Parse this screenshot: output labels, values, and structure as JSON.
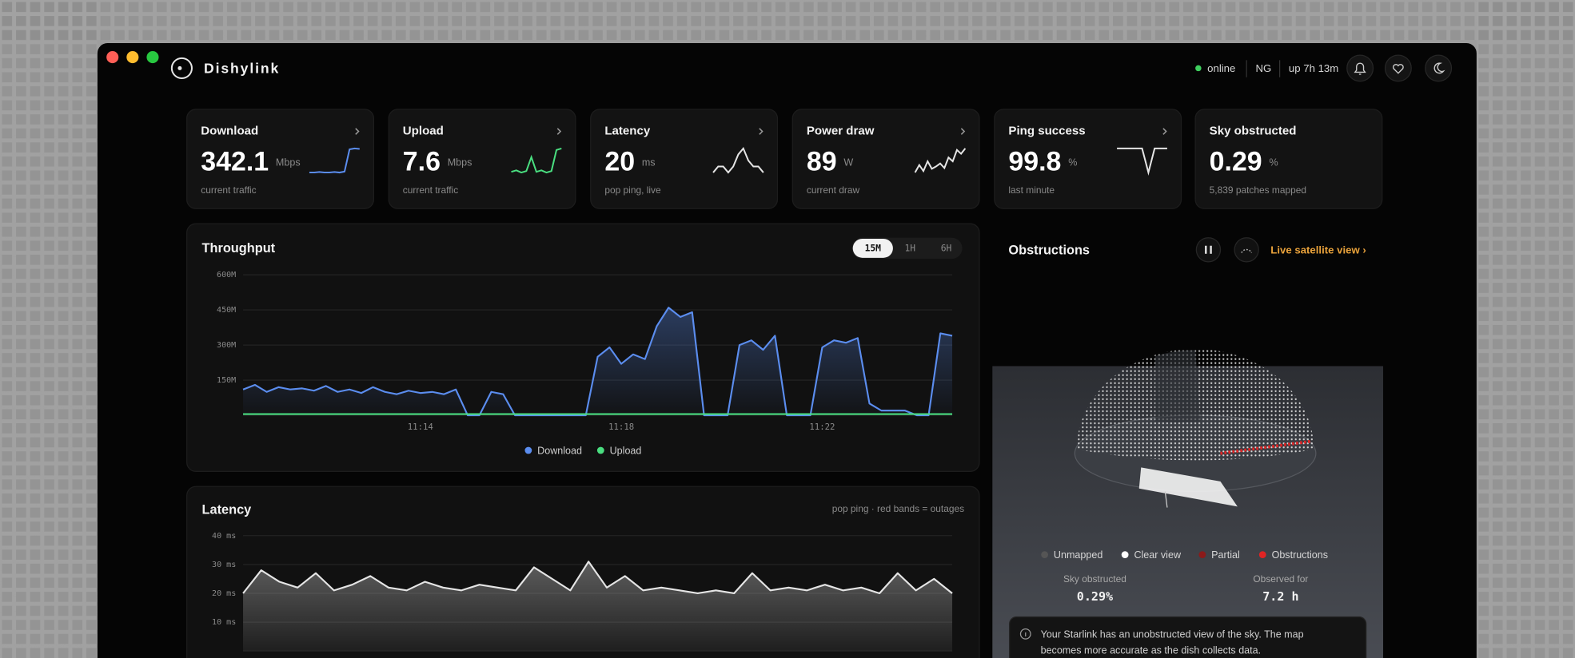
{
  "window": {
    "app_name": "Dishylink",
    "status": "online",
    "region": "NG",
    "uptime": "up 7h 13m"
  },
  "stat_cards": [
    {
      "title": "Download",
      "value": 342.1,
      "unit": "Mbps",
      "caption": "current traffic",
      "color": "#5b8def",
      "sparkline": [
        20,
        20,
        21,
        20,
        20,
        21,
        20,
        22,
        70,
        72,
        71
      ]
    },
    {
      "title": "Upload",
      "value": 7.6,
      "unit": "Mbps",
      "caption": "current traffic",
      "color": "#4ade80",
      "sparkline": [
        10,
        12,
        9,
        11,
        30,
        10,
        12,
        9,
        11,
        40,
        42
      ]
    },
    {
      "title": "Latency",
      "value": 20,
      "unit": "ms",
      "caption": "pop ping, live",
      "color": "#e5e5e5",
      "sparkline": [
        30,
        31,
        31,
        30,
        31,
        33,
        34,
        32,
        31,
        31,
        30
      ]
    },
    {
      "title": "Power draw",
      "value": 89,
      "unit": "W",
      "caption": "current draw",
      "color": "#e5e5e5",
      "sparkline": [
        20,
        30,
        22,
        35,
        25,
        28,
        32,
        26,
        40,
        35,
        50,
        45,
        52
      ]
    },
    {
      "title": "Ping success",
      "value": 99.8,
      "unit": "%",
      "caption": "last minute",
      "color": "#e5e5e5",
      "sparkline": [
        90,
        90,
        90,
        90,
        90,
        89.6,
        90,
        90,
        90
      ]
    },
    {
      "title": "Sky obstructed",
      "value": 0.29,
      "unit": "%",
      "caption": "5,839 patches mapped"
    }
  ],
  "throughput": {
    "title": "Throughput",
    "ranges": [
      "15M",
      "1H",
      "6H"
    ],
    "chart": {
      "type": "area",
      "categories": [
        null,
        null,
        null,
        null,
        null,
        null,
        null,
        null,
        null,
        null,
        null,
        null,
        null,
        null,
        null,
        "11:14",
        null,
        null,
        null,
        null,
        null,
        null,
        null,
        null,
        null,
        null,
        null,
        null,
        null,
        null,
        null,
        null,
        "11:18",
        null,
        null,
        null,
        null,
        null,
        null,
        null,
        null,
        null,
        null,
        null,
        null,
        null,
        null,
        null,
        null,
        "11:22",
        null,
        null,
        null,
        null,
        null,
        null,
        null,
        null,
        null,
        null,
        null
      ],
      "series": [
        {
          "name": "Download",
          "color": "#5b8def",
          "values": [
            110,
            130,
            100,
            120,
            110,
            115,
            105,
            125,
            100,
            110,
            95,
            120,
            100,
            90,
            105,
            95,
            100,
            90,
            110,
            0,
            0,
            100,
            90,
            0,
            0,
            0,
            0,
            0,
            0,
            0,
            250,
            290,
            220,
            260,
            240,
            380,
            460,
            420,
            440,
            0,
            0,
            0,
            300,
            320,
            280,
            340,
            0,
            0,
            0,
            290,
            320,
            310,
            330,
            50,
            20,
            20,
            20,
            0,
            0,
            350,
            340
          ]
        },
        {
          "name": "Upload",
          "color": "#4ade80",
          "values": [
            5,
            5,
            5,
            5,
            5,
            5,
            5,
            5,
            5,
            5,
            5,
            5,
            5,
            5,
            5,
            5,
            5,
            5,
            5,
            5,
            5,
            5,
            5,
            5,
            5,
            5,
            5,
            5,
            5,
            5,
            5,
            5,
            5,
            5,
            5,
            5,
            5,
            5,
            5,
            5,
            5,
            5,
            5,
            5,
            5,
            5,
            5,
            5,
            5,
            5,
            5,
            5,
            5,
            5,
            5,
            5,
            5,
            5,
            5,
            5,
            5
          ]
        }
      ],
      "ylim": [
        0,
        600
      ],
      "yticks": [
        {
          "value": 150,
          "label": "150M"
        },
        {
          "value": 300,
          "label": "300M"
        },
        {
          "value": 450,
          "label": "450M"
        },
        {
          "value": 600,
          "label": "600M"
        }
      ],
      "grid": true
    }
  },
  "latency": {
    "title": "Latency",
    "subtitle": "pop ping · red bands = outages",
    "chart": {
      "type": "area",
      "color": "#e5e5e5",
      "values": [
        20,
        28,
        24,
        22,
        27,
        21,
        23,
        26,
        22,
        21,
        24,
        22,
        21,
        23,
        22,
        21,
        29,
        25,
        21,
        31,
        22,
        26,
        21,
        22,
        21,
        20,
        21,
        20,
        27,
        21,
        22,
        21,
        23,
        21,
        22,
        20,
        27,
        21,
        25,
        20
      ],
      "ylim": [
        0,
        40
      ],
      "yticks": [
        {
          "value": 10,
          "label": "10 ms"
        },
        {
          "value": 20,
          "label": "20 ms"
        },
        {
          "value": 30,
          "label": "30 ms"
        },
        {
          "value": 40,
          "label": "40 ms"
        }
      ],
      "grid": true
    }
  },
  "obstructions": {
    "title": "Obstructions",
    "link": "Live satellite view ›",
    "legend": [
      {
        "name": "Unmapped",
        "color": "#555555"
      },
      {
        "name": "Clear view",
        "color": "#ffffff"
      },
      {
        "name": "Partial",
        "color": "#8b1a1a"
      },
      {
        "name": "Obstructions",
        "color": "#e02424"
      }
    ],
    "stats": [
      {
        "label": "Sky obstructed",
        "value": "0.29%"
      },
      {
        "label": "Observed for",
        "value": "7.2 h"
      }
    ],
    "info": [
      "Your Starlink has an unobstructed view of the sky. The map",
      "becomes more accurate as the dish collects data."
    ]
  }
}
